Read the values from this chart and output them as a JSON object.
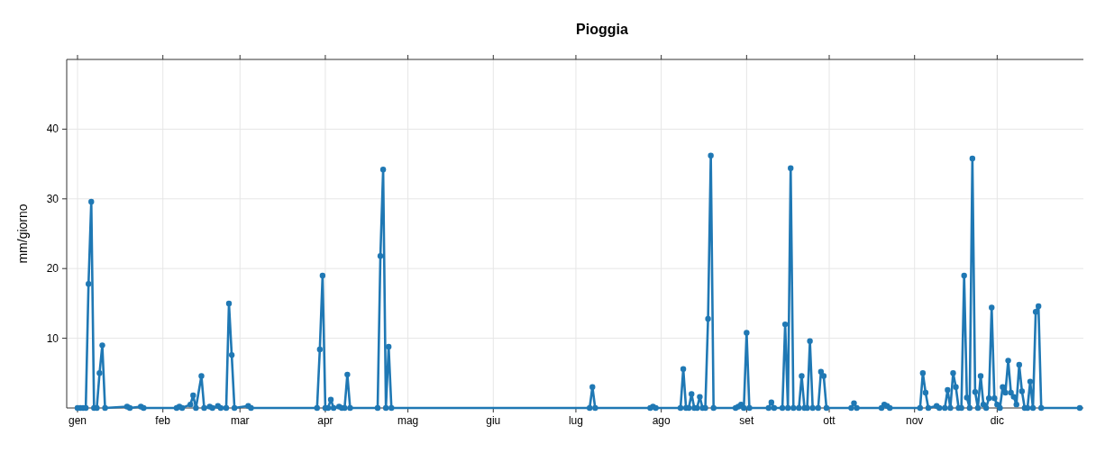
{
  "chart_data": {
    "type": "line",
    "title": "Pioggia",
    "ylabel": "mm/giorno",
    "x": [
      "--01-01",
      "--01-02",
      "--01-03",
      "--01-04",
      "--01-05",
      "--01-06",
      "--01-07",
      "--01-08",
      "--01-09",
      "--01-10",
      "--01-11",
      "--01-19",
      "--01-20",
      "--01-24",
      "--01-25",
      "--02-06",
      "--02-07",
      "--02-08",
      "--02-11",
      "--02-12",
      "--02-13",
      "--02-15",
      "--02-16",
      "--02-18",
      "--02-19",
      "--02-21",
      "--02-22",
      "--02-24",
      "--02-25",
      "--02-26",
      "--02-27",
      "--03-04",
      "--03-05",
      "--03-29",
      "--03-30",
      "--03-31",
      "--04-01",
      "--04-02",
      "--04-03",
      "--04-04",
      "--04-06",
      "--04-07",
      "--04-08",
      "--04-09",
      "--04-10",
      "--04-20",
      "--04-21",
      "--04-22",
      "--04-23",
      "--04-24",
      "--04-25",
      "--07-06",
      "--07-07",
      "--07-08",
      "--07-28",
      "--07-29",
      "--07-30",
      "--08-08",
      "--08-09",
      "--08-10",
      "--08-11",
      "--08-12",
      "--08-13",
      "--08-14",
      "--08-15",
      "--08-16",
      "--08-17",
      "--08-18",
      "--08-19",
      "--08-20",
      "--08-28",
      "--08-29",
      "--08-30",
      "--08-31",
      "--09-01",
      "--09-02",
      "--09-09",
      "--09-10",
      "--09-11",
      "--09-14",
      "--09-15",
      "--09-16",
      "--09-17",
      "--09-18",
      "--09-20",
      "--09-21",
      "--09-22",
      "--09-23",
      "--09-24",
      "--09-25",
      "--09-27",
      "--09-28",
      "--09-29",
      "--09-30",
      "--10-09",
      "--10-10",
      "--10-11",
      "--10-20",
      "--10-21",
      "--10-22",
      "--10-23",
      "--11-03",
      "--11-04",
      "--11-05",
      "--11-06",
      "--11-09",
      "--11-10",
      "--11-12",
      "--11-13",
      "--11-14",
      "--11-15",
      "--11-16",
      "--11-17",
      "--11-18",
      "--11-19",
      "--11-20",
      "--11-21",
      "--11-22",
      "--11-23",
      "--11-24",
      "--11-25",
      "--11-26",
      "--11-27",
      "--11-28",
      "--11-29",
      "--11-30",
      "--12-01",
      "--12-02",
      "--12-03",
      "--12-04",
      "--12-05",
      "--12-06",
      "--12-07",
      "--12-08",
      "--12-09",
      "--12-10",
      "--12-11",
      "--12-12",
      "--12-13",
      "--12-14",
      "--12-15",
      "--12-16",
      "--12-17",
      "--12-31"
    ],
    "series": [
      {
        "color": "#1f78b4",
        "values": [
          0,
          0,
          0,
          0,
          17.8,
          29.6,
          0,
          0,
          5,
          9,
          0,
          0.2,
          0,
          0.2,
          0,
          0,
          0.2,
          0,
          0.5,
          1.8,
          0,
          4.6,
          0,
          0.2,
          0,
          0.3,
          0,
          0,
          15,
          7.6,
          0,
          0.3,
          0,
          0,
          8.4,
          19,
          0,
          0,
          1.2,
          0,
          0.2,
          0,
          0,
          4.8,
          0,
          0,
          21.8,
          34.2,
          0,
          8.8,
          0,
          0,
          3,
          0,
          0,
          0.2,
          0,
          0,
          5.6,
          0,
          0,
          2,
          0,
          0,
          1.6,
          0,
          0,
          12.8,
          36.2,
          0,
          0,
          0.2,
          0.5,
          0,
          10.8,
          0,
          0,
          0.8,
          0,
          0,
          12,
          0,
          34.4,
          0,
          0,
          4.6,
          0,
          0,
          9.6,
          0,
          0,
          5.2,
          4.6,
          0,
          0,
          0.7,
          0,
          0,
          0.5,
          0.3,
          0,
          0,
          5,
          2.2,
          0,
          0.3,
          0,
          0,
          2.6,
          0,
          5,
          3,
          0,
          0,
          19,
          1.5,
          0,
          35.8,
          2.3,
          0,
          4.6,
          0.5,
          0,
          1.4,
          14.4,
          1.4,
          0.5,
          0,
          3,
          2.2,
          6.8,
          2.2,
          1.6,
          0.5,
          6.2,
          2.4,
          0,
          0,
          3.8,
          0,
          13.8,
          14.6,
          0,
          0
        ]
      }
    ],
    "xlim": [
      "--01-01",
      "--12-31"
    ],
    "xticks": [
      {
        "value": "--01-01",
        "label": "gen"
      },
      {
        "value": "--02-01",
        "label": "feb"
      },
      {
        "value": "--03-01",
        "label": "mar"
      },
      {
        "value": "--04-01",
        "label": "apr"
      },
      {
        "value": "--05-01",
        "label": "mag"
      },
      {
        "value": "--06-01",
        "label": "giu"
      },
      {
        "value": "--07-01",
        "label": "lug"
      },
      {
        "value": "--08-01",
        "label": "ago"
      },
      {
        "value": "--09-01",
        "label": "set"
      },
      {
        "value": "--10-01",
        "label": "ott"
      },
      {
        "value": "--11-01",
        "label": "nov"
      },
      {
        "value": "--12-01",
        "label": "dic"
      }
    ],
    "ylim": [
      0,
      50
    ],
    "yticks": [
      10,
      20,
      30,
      40
    ],
    "grid": true,
    "marker": "circle",
    "line_style": "solid"
  }
}
